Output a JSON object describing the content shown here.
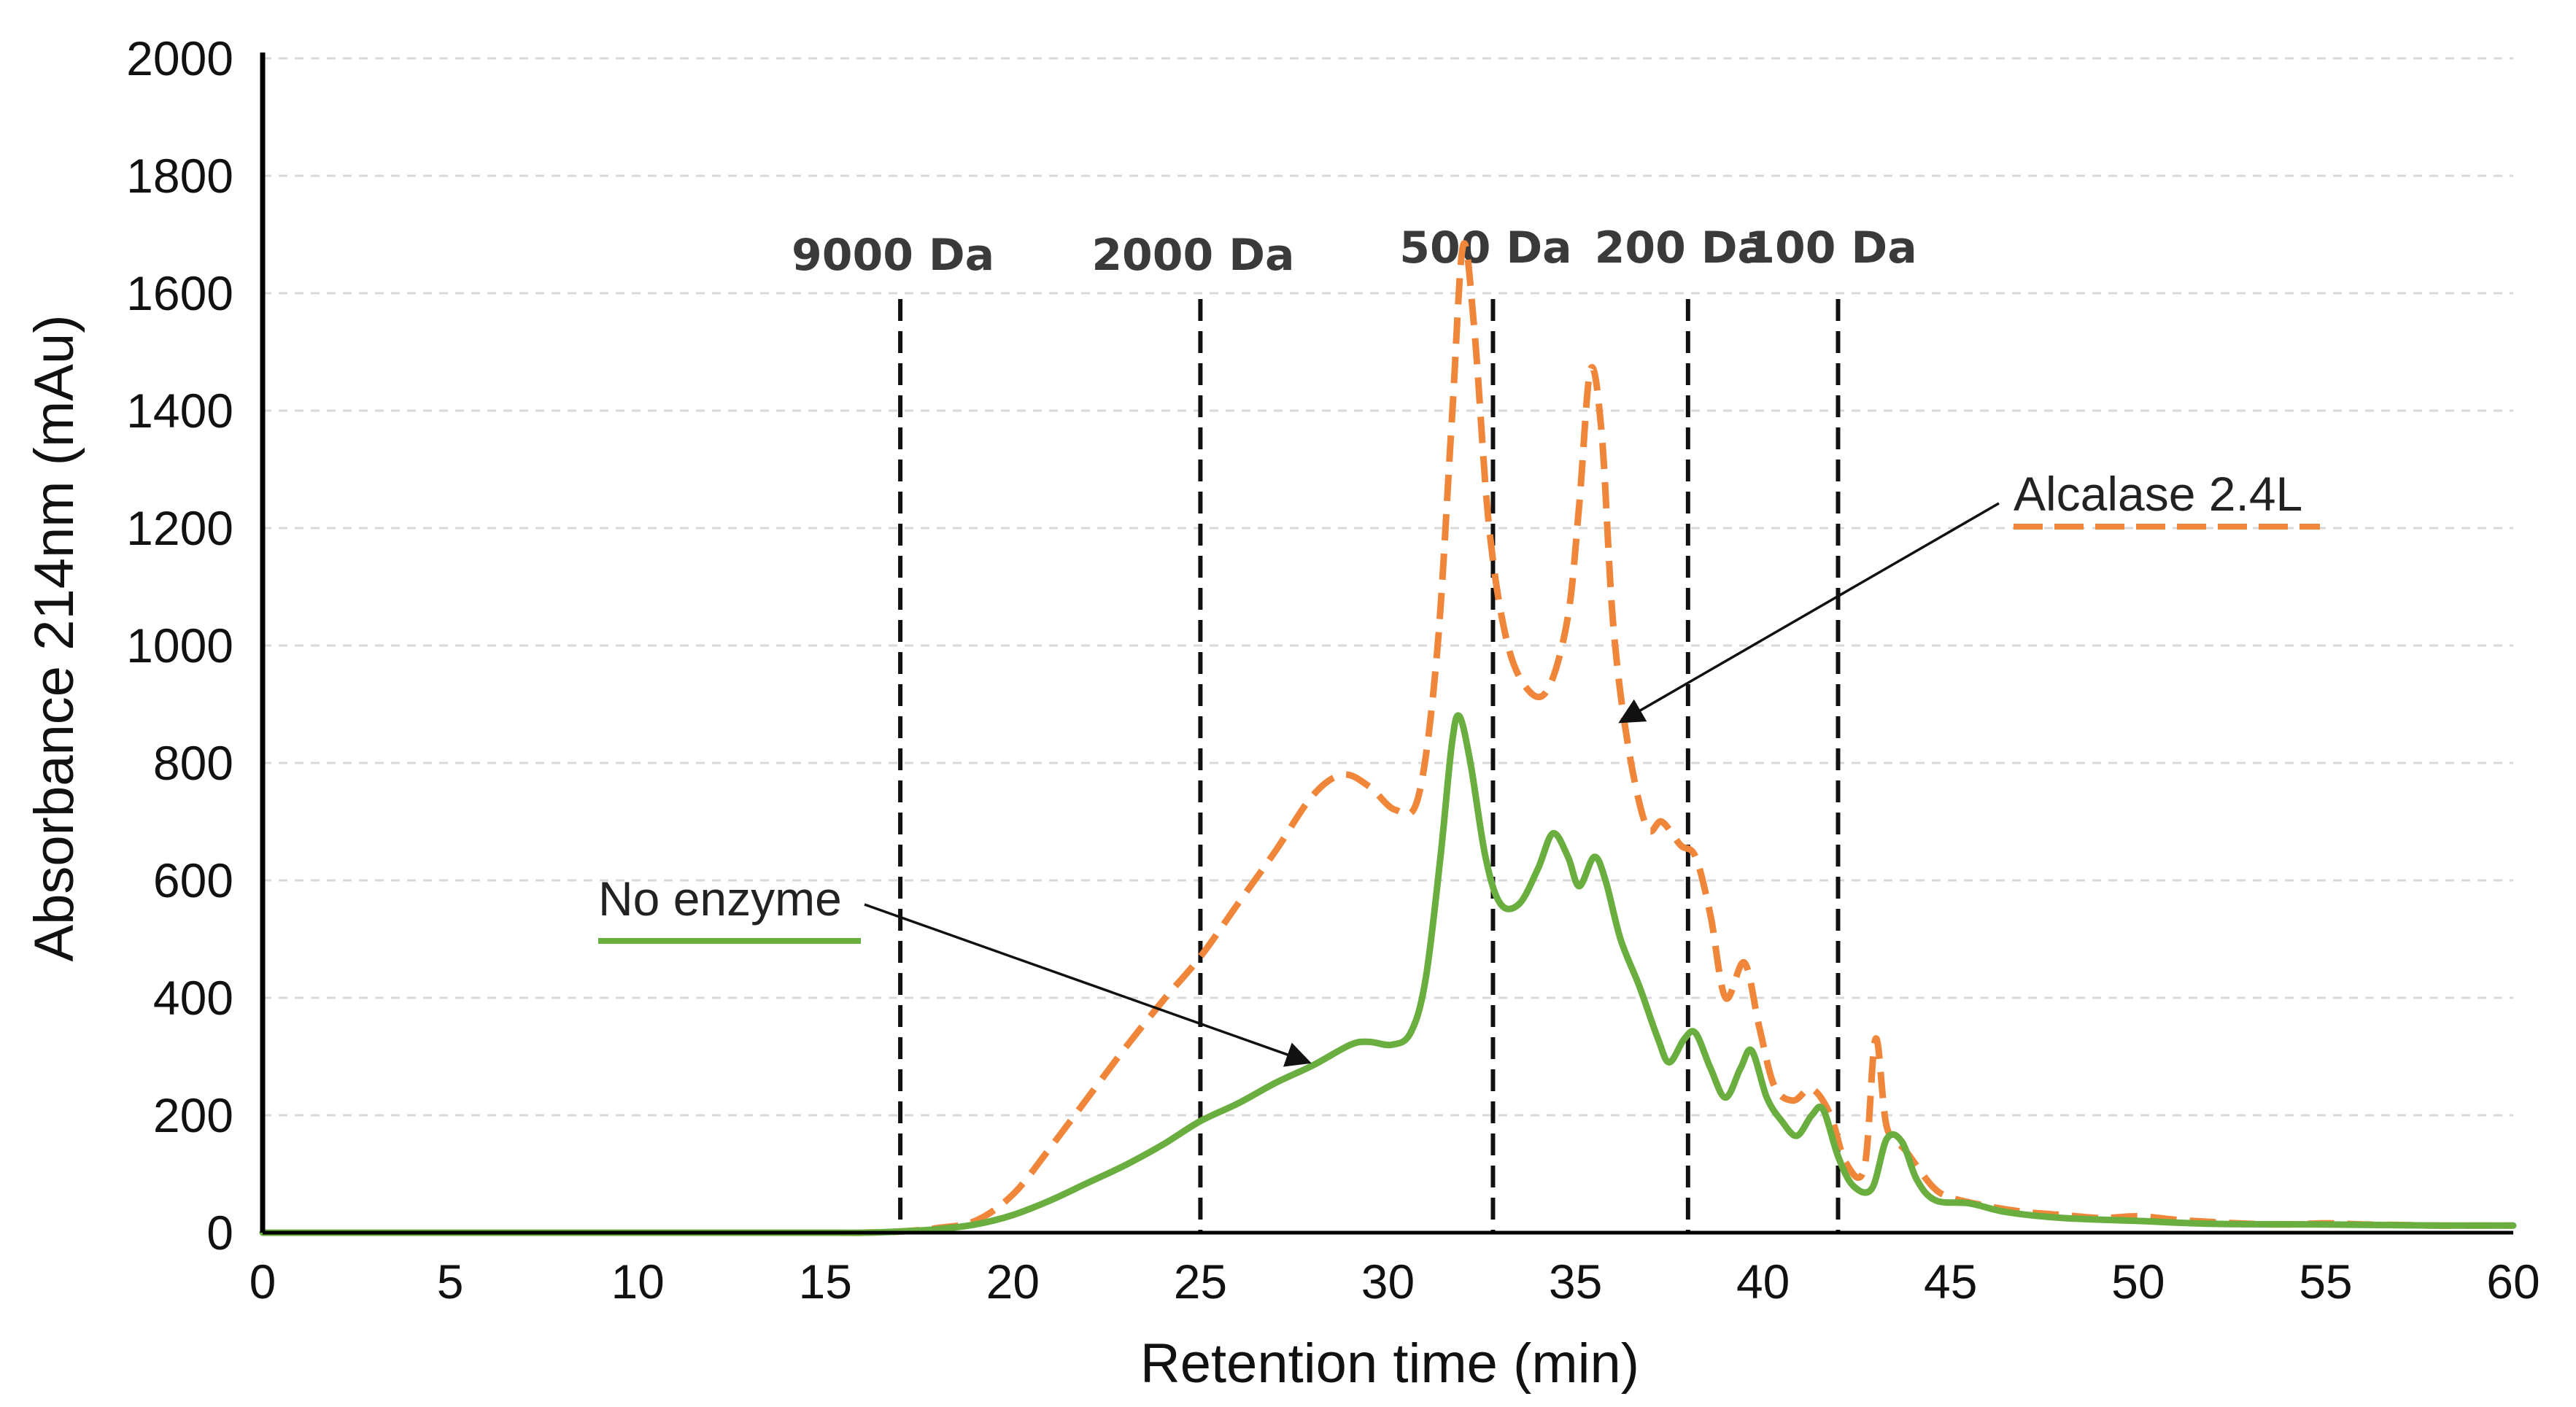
{
  "chart_data": {
    "type": "line",
    "title": "",
    "xlabel": "Retention time (min)",
    "ylabel": "Absorbance 214nm (mAu)",
    "xlim": [
      0,
      60
    ],
    "ylim": [
      0,
      2000
    ],
    "xticks": [
      0,
      5,
      10,
      15,
      20,
      25,
      30,
      35,
      40,
      45,
      50,
      55,
      60
    ],
    "yticks": [
      0,
      200,
      400,
      600,
      800,
      1000,
      1200,
      1400,
      1600,
      1800,
      2000
    ],
    "grid": "horizontal dashed",
    "markers": [
      {
        "label": "9000 Da",
        "x": 17.0
      },
      {
        "label": "2000 Da",
        "x": 25.0
      },
      {
        "label": "500 Da",
        "x": 32.8
      },
      {
        "label": "200 Da",
        "x": 38.0
      },
      {
        "label": "100 Da",
        "x": 42.0
      }
    ],
    "series": [
      {
        "name": "Alcalase 2.4L",
        "color": "#F0863A",
        "style": "dashed",
        "points": [
          [
            0,
            0
          ],
          [
            5,
            0
          ],
          [
            10,
            0
          ],
          [
            15,
            0
          ],
          [
            16,
            0
          ],
          [
            17,
            2
          ],
          [
            18,
            8
          ],
          [
            19,
            20
          ],
          [
            20,
            65
          ],
          [
            21,
            145
          ],
          [
            22,
            230
          ],
          [
            23,
            315
          ],
          [
            24,
            395
          ],
          [
            25,
            470
          ],
          [
            26,
            560
          ],
          [
            27,
            650
          ],
          [
            28,
            745
          ],
          [
            28.8,
            780
          ],
          [
            29.5,
            760
          ],
          [
            30.2,
            720
          ],
          [
            30.8,
            740
          ],
          [
            31.3,
            980
          ],
          [
            31.7,
            1380
          ],
          [
            32.0,
            1680
          ],
          [
            32.3,
            1540
          ],
          [
            32.7,
            1200
          ],
          [
            33.2,
            1000
          ],
          [
            33.8,
            920
          ],
          [
            34.3,
            930
          ],
          [
            34.8,
            1050
          ],
          [
            35.1,
            1240
          ],
          [
            35.4,
            1470
          ],
          [
            35.7,
            1360
          ],
          [
            36.0,
            1040
          ],
          [
            36.4,
            830
          ],
          [
            36.9,
            690
          ],
          [
            37.3,
            700
          ],
          [
            37.8,
            660
          ],
          [
            38.2,
            640
          ],
          [
            38.6,
            540
          ],
          [
            39.0,
            400
          ],
          [
            39.5,
            460
          ],
          [
            39.9,
            350
          ],
          [
            40.3,
            250
          ],
          [
            40.8,
            225
          ],
          [
            41.3,
            245
          ],
          [
            41.8,
            200
          ],
          [
            42.2,
            120
          ],
          [
            42.7,
            110
          ],
          [
            43.0,
            330
          ],
          [
            43.3,
            180
          ],
          [
            43.8,
            140
          ],
          [
            44.5,
            80
          ],
          [
            45,
            60
          ],
          [
            46,
            45
          ],
          [
            47,
            35
          ],
          [
            48,
            30
          ],
          [
            49,
            25
          ],
          [
            50,
            28
          ],
          [
            51,
            22
          ],
          [
            52,
            18
          ],
          [
            53,
            15
          ],
          [
            54,
            14
          ],
          [
            55,
            16
          ],
          [
            56,
            14
          ],
          [
            57,
            13
          ],
          [
            58,
            12
          ],
          [
            59,
            12
          ],
          [
            60,
            12
          ]
        ]
      },
      {
        "name": "No enzyme",
        "color": "#6AAE3F",
        "style": "solid",
        "points": [
          [
            0,
            0
          ],
          [
            5,
            0
          ],
          [
            10,
            0
          ],
          [
            15,
            0
          ],
          [
            16,
            0
          ],
          [
            17,
            2
          ],
          [
            18,
            6
          ],
          [
            19,
            14
          ],
          [
            20,
            30
          ],
          [
            21,
            55
          ],
          [
            22,
            85
          ],
          [
            23,
            115
          ],
          [
            24,
            150
          ],
          [
            25,
            190
          ],
          [
            26,
            220
          ],
          [
            27,
            255
          ],
          [
            28,
            285
          ],
          [
            29,
            320
          ],
          [
            29.5,
            325
          ],
          [
            30.1,
            320
          ],
          [
            30.6,
            340
          ],
          [
            31.0,
            430
          ],
          [
            31.4,
            640
          ],
          [
            31.7,
            830
          ],
          [
            31.9,
            880
          ],
          [
            32.2,
            800
          ],
          [
            32.6,
            640
          ],
          [
            33.0,
            560
          ],
          [
            33.5,
            560
          ],
          [
            34.0,
            620
          ],
          [
            34.4,
            680
          ],
          [
            34.8,
            640
          ],
          [
            35.1,
            590
          ],
          [
            35.5,
            640
          ],
          [
            35.8,
            600
          ],
          [
            36.2,
            500
          ],
          [
            36.7,
            420
          ],
          [
            37.2,
            330
          ],
          [
            37.5,
            290
          ],
          [
            37.9,
            330
          ],
          [
            38.2,
            340
          ],
          [
            38.6,
            280
          ],
          [
            39.0,
            230
          ],
          [
            39.4,
            280
          ],
          [
            39.7,
            310
          ],
          [
            40.1,
            230
          ],
          [
            40.5,
            190
          ],
          [
            40.9,
            165
          ],
          [
            41.3,
            200
          ],
          [
            41.6,
            210
          ],
          [
            42.0,
            130
          ],
          [
            42.4,
            80
          ],
          [
            42.9,
            75
          ],
          [
            43.3,
            160
          ],
          [
            43.7,
            155
          ],
          [
            44.1,
            90
          ],
          [
            44.6,
            55
          ],
          [
            45.5,
            50
          ],
          [
            46.5,
            35
          ],
          [
            48,
            25
          ],
          [
            50,
            20
          ],
          [
            52,
            15
          ],
          [
            55,
            14
          ],
          [
            58,
            12
          ],
          [
            60,
            12
          ]
        ]
      }
    ],
    "legend": [
      {
        "label": "No enzyme",
        "color": "#6AAE3F",
        "style": "solid"
      },
      {
        "label": "Alcalase 2.4L",
        "color": "#F0863A",
        "style": "dashed"
      }
    ]
  }
}
